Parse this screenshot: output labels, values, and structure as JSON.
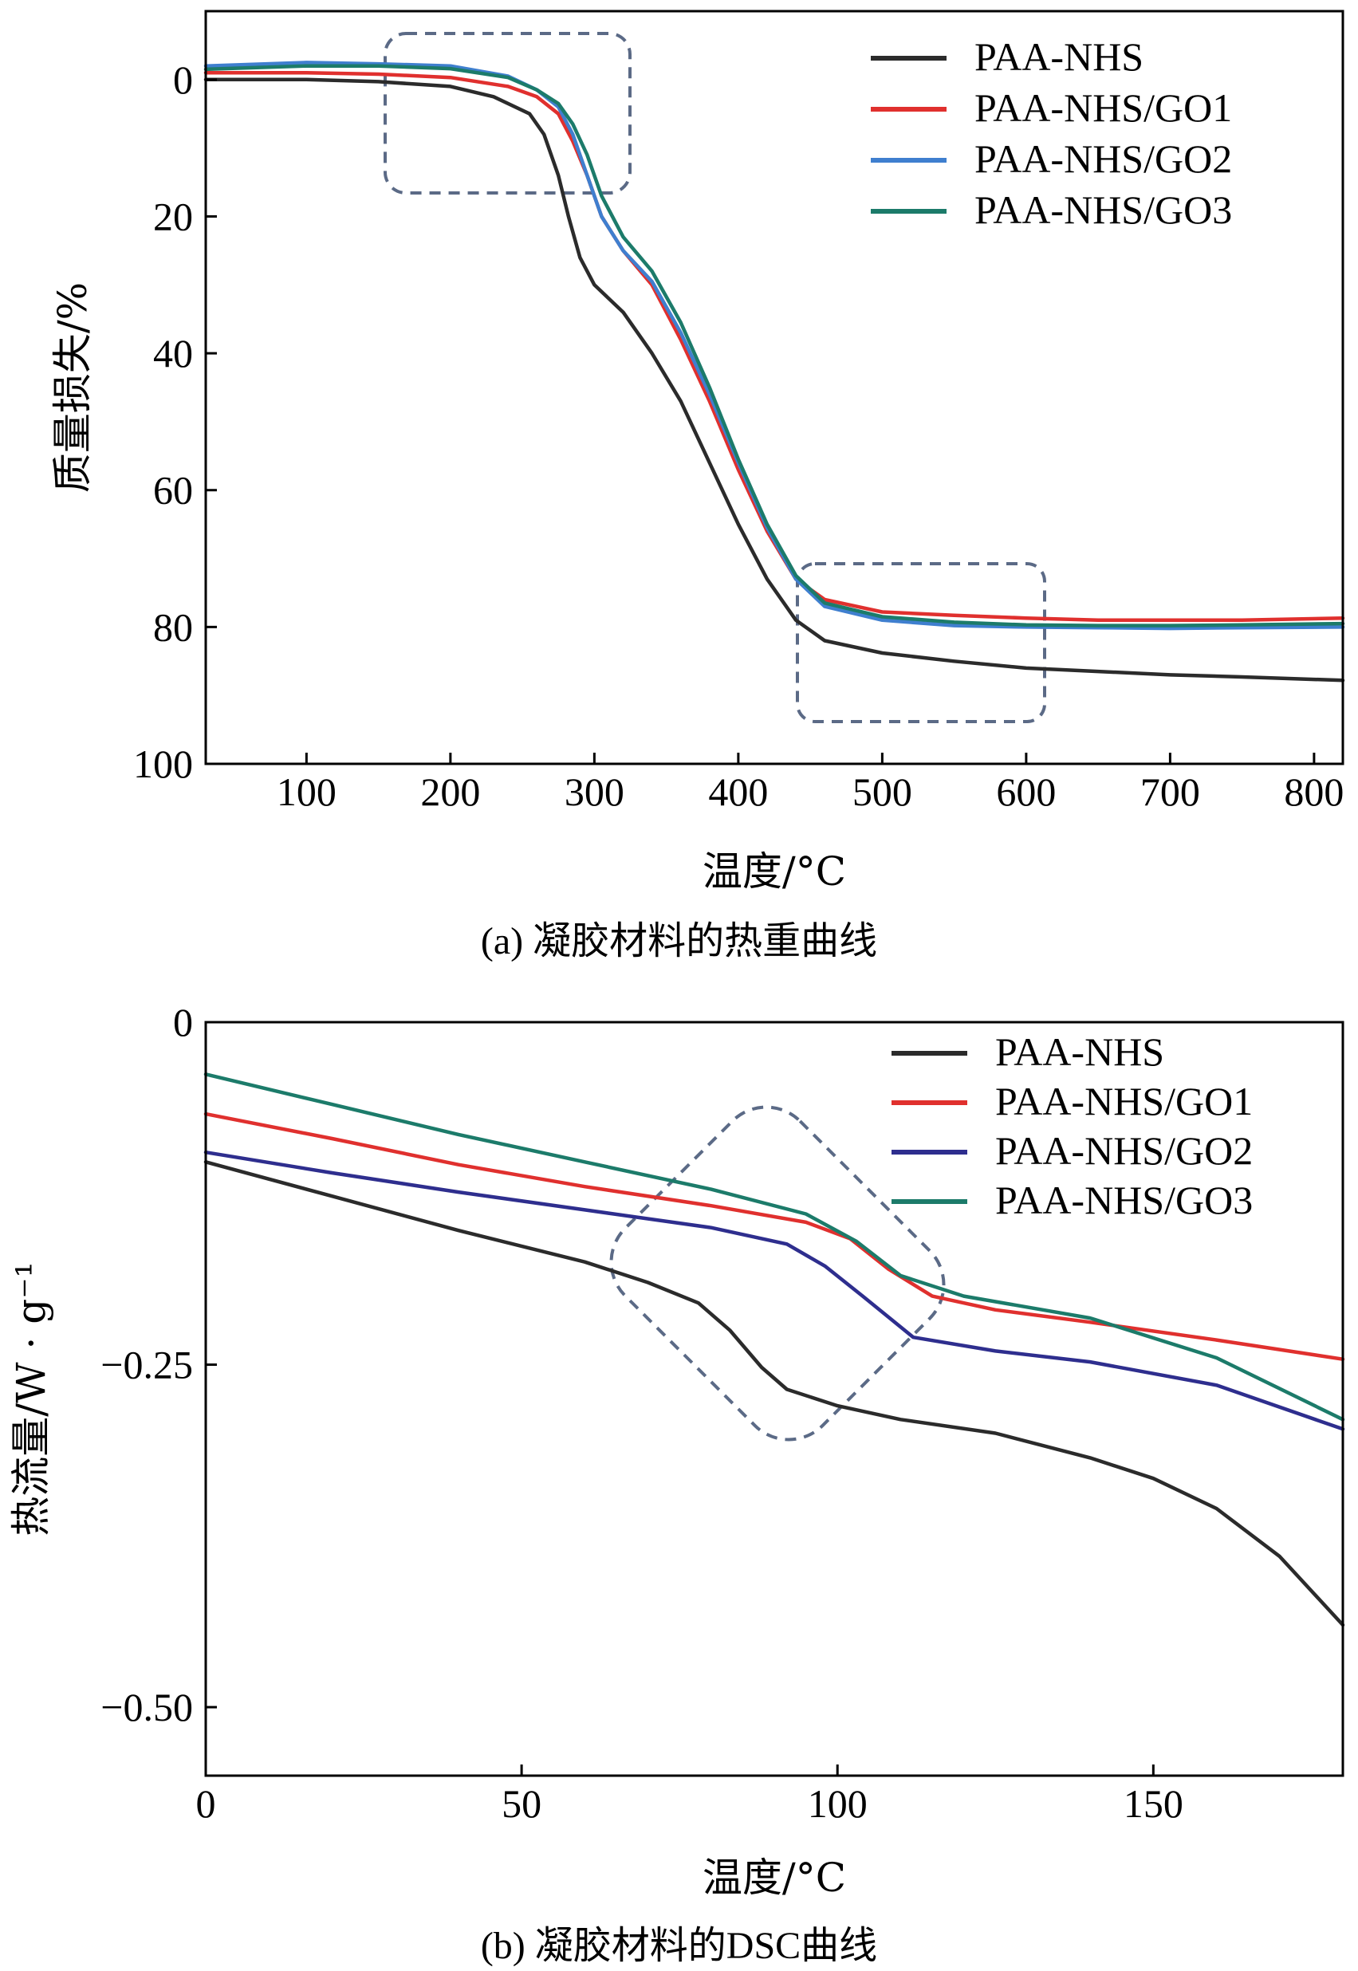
{
  "chart_data": [
    {
      "type": "line",
      "caption": "(a) 凝胶材料的热重曲线",
      "xlabel": "温度/°C",
      "ylabel": "质量损失/%",
      "xlim": [
        30,
        820
      ],
      "ylim": [
        -10,
        100
      ],
      "y_inverted": true,
      "xticks": [
        100,
        200,
        300,
        400,
        500,
        600,
        700,
        800
      ],
      "yticks": [
        0,
        20,
        40,
        60,
        80,
        100
      ],
      "legend_position": "top-right",
      "annotations": [
        "dashed box around 160–300 °C onset region",
        "dashed box around 445–610 °C plateau region"
      ],
      "series": [
        {
          "name": "PAA-NHS",
          "color": "#2b2b2b",
          "points": [
            [
              30,
              0
            ],
            [
              100,
              0
            ],
            [
              150,
              0.3
            ],
            [
              200,
              1
            ],
            [
              230,
              2.5
            ],
            [
              255,
              5
            ],
            [
              265,
              8
            ],
            [
              275,
              14
            ],
            [
              282,
              20
            ],
            [
              290,
              26
            ],
            [
              300,
              30
            ],
            [
              320,
              34
            ],
            [
              340,
              40
            ],
            [
              360,
              47
            ],
            [
              380,
              56
            ],
            [
              400,
              65
            ],
            [
              420,
              73
            ],
            [
              440,
              79
            ],
            [
              460,
              82
            ],
            [
              500,
              83.8
            ],
            [
              550,
              85
            ],
            [
              600,
              86
            ],
            [
              650,
              86.5
            ],
            [
              700,
              87
            ],
            [
              750,
              87.3
            ],
            [
              820,
              87.8
            ]
          ]
        },
        {
          "name": "PAA-NHS/GO1",
          "color": "#e0302e",
          "points": [
            [
              30,
              -1
            ],
            [
              100,
              -1
            ],
            [
              150,
              -0.8
            ],
            [
              200,
              -0.3
            ],
            [
              240,
              1
            ],
            [
              260,
              2.5
            ],
            [
              275,
              5
            ],
            [
              285,
              9
            ],
            [
              295,
              14
            ],
            [
              305,
              20
            ],
            [
              320,
              25
            ],
            [
              340,
              30
            ],
            [
              360,
              38
            ],
            [
              380,
              47
            ],
            [
              400,
              57
            ],
            [
              420,
              66
            ],
            [
              440,
              73
            ],
            [
              460,
              76
            ],
            [
              500,
              77.8
            ],
            [
              550,
              78.3
            ],
            [
              600,
              78.7
            ],
            [
              650,
              79
            ],
            [
              700,
              79
            ],
            [
              750,
              79
            ],
            [
              820,
              78.7
            ]
          ]
        },
        {
          "name": "PAA-NHS/GO2",
          "color": "#3f7fcf",
          "points": [
            [
              30,
              -2
            ],
            [
              100,
              -2.5
            ],
            [
              150,
              -2.3
            ],
            [
              200,
              -2
            ],
            [
              240,
              -0.5
            ],
            [
              260,
              1.5
            ],
            [
              275,
              4
            ],
            [
              285,
              8
            ],
            [
              295,
              14
            ],
            [
              305,
              20
            ],
            [
              320,
              25
            ],
            [
              340,
              29.5
            ],
            [
              360,
              37
            ],
            [
              380,
              46
            ],
            [
              400,
              56
            ],
            [
              420,
              65.5
            ],
            [
              440,
              73
            ],
            [
              460,
              77
            ],
            [
              500,
              79
            ],
            [
              550,
              79.8
            ],
            [
              600,
              80
            ],
            [
              650,
              80.1
            ],
            [
              700,
              80.2
            ],
            [
              750,
              80.1
            ],
            [
              820,
              80
            ]
          ]
        },
        {
          "name": "PAA-NHS/GO3",
          "color": "#1c7b6a",
          "points": [
            [
              30,
              -1.5
            ],
            [
              100,
              -2
            ],
            [
              150,
              -2
            ],
            [
              200,
              -1.6
            ],
            [
              240,
              -0.3
            ],
            [
              260,
              1.5
            ],
            [
              275,
              3.5
            ],
            [
              285,
              6.5
            ],
            [
              295,
              11
            ],
            [
              305,
              17
            ],
            [
              320,
              23
            ],
            [
              340,
              28
            ],
            [
              360,
              35.5
            ],
            [
              380,
              45
            ],
            [
              400,
              55.5
            ],
            [
              420,
              65
            ],
            [
              440,
              72.5
            ],
            [
              460,
              76.5
            ],
            [
              500,
              78.5
            ],
            [
              550,
              79.3
            ],
            [
              600,
              79.7
            ],
            [
              650,
              79.8
            ],
            [
              700,
              79.8
            ],
            [
              750,
              79.7
            ],
            [
              820,
              79.5
            ]
          ]
        }
      ]
    },
    {
      "type": "line",
      "caption": "(b) 凝胶材料的DSC曲线",
      "xlabel": "温度/°C",
      "ylabel": "热流量/W · g⁻¹",
      "xlim": [
        0,
        180
      ],
      "ylim": [
        -0.55,
        0
      ],
      "xticks": [
        0,
        50,
        100,
        150
      ],
      "yticks": [
        0,
        -0.25,
        -0.5
      ],
      "ytick_labels": [
        "0",
        "−0.25",
        "−0.50"
      ],
      "legend_position": "top-right",
      "annotations": [
        "dashed rotated box around 65–125 °C transition region"
      ],
      "series": [
        {
          "name": "PAA-NHS",
          "color": "#2b2b2b",
          "points": [
            [
              0,
              -0.102
            ],
            [
              20,
              -0.127
            ],
            [
              40,
              -0.152
            ],
            [
              60,
              -0.175
            ],
            [
              70,
              -0.19
            ],
            [
              78,
              -0.205
            ],
            [
              83,
              -0.225
            ],
            [
              88,
              -0.252
            ],
            [
              92,
              -0.268
            ],
            [
              100,
              -0.28
            ],
            [
              110,
              -0.29
            ],
            [
              125,
              -0.3
            ],
            [
              140,
              -0.318
            ],
            [
              150,
              -0.333
            ],
            [
              160,
              -0.355
            ],
            [
              170,
              -0.39
            ],
            [
              180,
              -0.44
            ]
          ]
        },
        {
          "name": "PAA-NHS/GO1",
          "color": "#e0302e",
          "points": [
            [
              0,
              -0.067
            ],
            [
              20,
              -0.085
            ],
            [
              40,
              -0.104
            ],
            [
              60,
              -0.12
            ],
            [
              80,
              -0.134
            ],
            [
              95,
              -0.146
            ],
            [
              102,
              -0.158
            ],
            [
              108,
              -0.18
            ],
            [
              115,
              -0.2
            ],
            [
              125,
              -0.21
            ],
            [
              140,
              -0.219
            ],
            [
              160,
              -0.232
            ],
            [
              180,
              -0.246
            ]
          ]
        },
        {
          "name": "PAA-NHS/GO2",
          "color": "#2e2e8e",
          "points": [
            [
              0,
              -0.095
            ],
            [
              20,
              -0.11
            ],
            [
              40,
              -0.124
            ],
            [
              60,
              -0.137
            ],
            [
              80,
              -0.15
            ],
            [
              92,
              -0.162
            ],
            [
              98,
              -0.178
            ],
            [
              104,
              -0.2
            ],
            [
              112,
              -0.23
            ],
            [
              125,
              -0.24
            ],
            [
              140,
              -0.248
            ],
            [
              160,
              -0.265
            ],
            [
              180,
              -0.297
            ]
          ]
        },
        {
          "name": "PAA-NHS/GO3",
          "color": "#1c7b6a",
          "points": [
            [
              0,
              -0.038
            ],
            [
              20,
              -0.06
            ],
            [
              40,
              -0.082
            ],
            [
              60,
              -0.102
            ],
            [
              80,
              -0.122
            ],
            [
              95,
              -0.14
            ],
            [
              103,
              -0.16
            ],
            [
              110,
              -0.185
            ],
            [
              120,
              -0.2
            ],
            [
              140,
              -0.216
            ],
            [
              160,
              -0.245
            ],
            [
              180,
              -0.29
            ]
          ]
        }
      ]
    }
  ]
}
